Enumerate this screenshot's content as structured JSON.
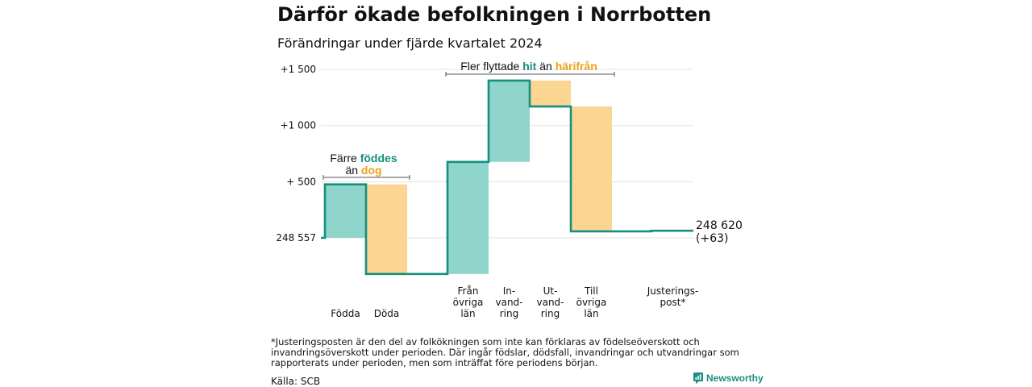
{
  "title": "Därför ökade befolkningen i Norrbotten",
  "subtitle": "Förändringar under fjärde kvartalet 2024",
  "chart_data": {
    "type": "waterfall",
    "start": {
      "label": "248 557",
      "value": 248557
    },
    "end": {
      "label_value": "248 620",
      "label_change": "(+63)",
      "value": 248620
    },
    "y_ticks": [
      {
        "label": "+ 500",
        "offset": 500
      },
      {
        "label": "+1 000",
        "offset": 1000
      },
      {
        "label": "+1 500",
        "offset": 1500
      }
    ],
    "steps": [
      {
        "label": [
          "Födda"
        ],
        "change": 476,
        "color_key": "pos"
      },
      {
        "label": [
          "Döda"
        ],
        "change": -798,
        "color_key": "neg"
      },
      {
        "label": [
          "Från",
          "övriga",
          "län"
        ],
        "change": 998,
        "color_key": "pos"
      },
      {
        "label": [
          "In-",
          "vand-",
          "ring"
        ],
        "change": 724,
        "color_key": "pos"
      },
      {
        "label": [
          "Ut-",
          "vand-",
          "ring"
        ],
        "change": -230,
        "color_key": "neg"
      },
      {
        "label": [
          "Till",
          "övriga",
          "län"
        ],
        "change": -1112,
        "color_key": "neg"
      },
      {
        "label": [
          "Justerings-",
          "post*"
        ],
        "change": 5,
        "color_key": "pos"
      }
    ],
    "annotations": [
      {
        "lines": [
          [
            {
              "t": "Färre "
            },
            {
              "t": "föddes",
              "c": "pos"
            }
          ],
          [
            {
              "t": "än "
            },
            {
              "t": "dog",
              "c": "neg"
            }
          ]
        ],
        "from_step": 0,
        "to_step": 1,
        "level": 500
      },
      {
        "lines": [
          [
            {
              "t": "Fler flyttade "
            },
            {
              "t": "hit",
              "c": "pos"
            },
            {
              "t": " än "
            },
            {
              "t": "härifrån",
              "c": "neg"
            }
          ]
        ],
        "from_step": 2,
        "to_step": 5,
        "level": 1500
      }
    ],
    "colors": {
      "pos_fill": "#8fd5cb",
      "neg_fill": "#fbd592",
      "line": "#14907f",
      "pos_text": "#14907f",
      "neg_text": "#e8a21c",
      "grid": "#e3e3e3"
    },
    "grid": true
  },
  "footnote": "*Justeringsposten är den del av folkökningen som inte kan förklaras av födelseöverskott och invandringsöverskott under perioden. Där ingår födslar, dödsfall, invandringar och utvandringar som rapporterats under perioden, men som inträffat före periodens början.",
  "source": "Källa: SCB",
  "brand": "Newsworthy"
}
